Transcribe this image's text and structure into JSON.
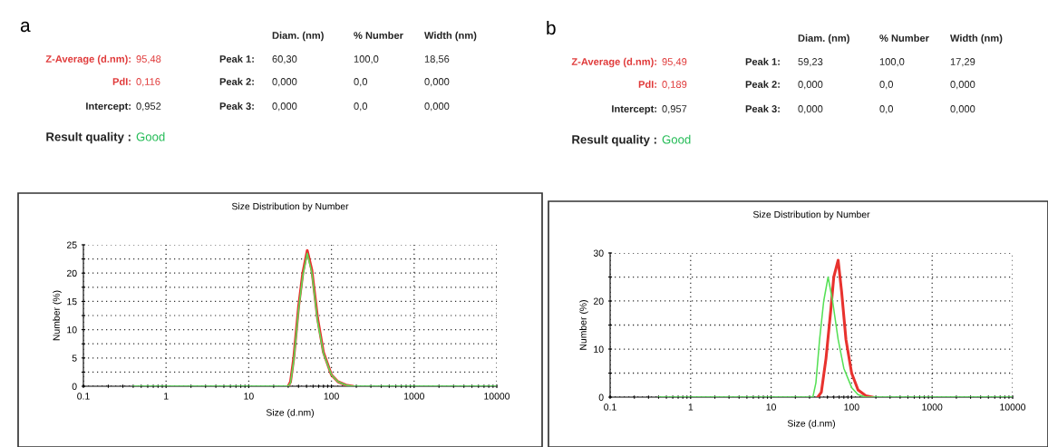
{
  "chart_data": [
    {
      "type": "other",
      "title": "a",
      "annotations": [
        "Diam. (nm)",
        "% Number",
        "Width (nm)",
        "Z-Average (d.nm):",
        "95,48",
        "Peak 1:",
        "60,30",
        "100,0",
        "18,56",
        "PdI:",
        "0,116",
        "Peak 2:",
        "0,000",
        "0,0",
        "0,000",
        "Intercept:",
        "0,952",
        "Peak 3:",
        "0,000",
        "0,0",
        "0,000",
        "Result quality :",
        "Good"
      ],
      "colors": [
        "#222222",
        "#222222",
        "#222222",
        "#e03a3a",
        "#e03a3a",
        "#222222",
        "#222222",
        "#222222",
        "#222222",
        "#e03a3a",
        "#e03a3a",
        "#222222",
        "#222222",
        "#222222",
        "#222222",
        "#222222",
        "#222222",
        "#222222",
        "#222222",
        "#222222",
        "#222222",
        "#222222",
        "#22bb55"
      ]
    },
    {
      "type": "line",
      "title": "Size Distribution by Number",
      "xlabel": "Size (d.nm)",
      "ylabel": "Number (%)",
      "log": "x",
      "xlim": [
        0.1,
        10000
      ],
      "xticks": [
        0.1,
        1,
        10,
        100,
        1000,
        10000
      ],
      "ylim": [
        0,
        25
      ],
      "yticks": [
        0,
        {
          "value": 2.5,
          "label": null
        },
        5,
        {
          "value": 7.5,
          "label": null
        },
        10,
        {
          "value": 12.5,
          "label": null
        },
        15,
        {
          "value": 17.5,
          "label": null
        },
        20,
        {
          "value": 22.5,
          "label": null
        },
        25
      ],
      "grid": true,
      "series": [
        {
          "color": "#e8322e",
          "x": [
            30,
            32,
            35,
            40,
            45,
            51,
            58,
            68,
            80,
            100,
            120,
            150,
            180
          ],
          "values": [
            0,
            0.8,
            5,
            14,
            20,
            24,
            20.5,
            12,
            6,
            2,
            0.8,
            0.2,
            0
          ]
        },
        {
          "color": "#55e055",
          "x": [
            0.4,
            30,
            32,
            35,
            40,
            45,
            51,
            58,
            68,
            80,
            100,
            120,
            150,
            180,
            10000
          ],
          "values": [
            0,
            0,
            0.6,
            4.5,
            13.5,
            19.5,
            23.5,
            20,
            11.5,
            5.8,
            2,
            0.8,
            0.2,
            0,
            0
          ]
        }
      ]
    },
    {
      "type": "other",
      "title": "b",
      "annotations": [
        "Diam. (nm)",
        "% Number",
        "Width (nm)",
        "Z-Average (d.nm):",
        "95,49",
        "Peak 1:",
        "59,23",
        "100,0",
        "17,29",
        "PdI:",
        "0,189",
        "Peak 2:",
        "0,000",
        "0,0",
        "0,000",
        "Intercept:",
        "0,957",
        "Peak 3:",
        "0,000",
        "0,0",
        "0,000",
        "Result quality :",
        "Good"
      ],
      "colors": [
        "#222222",
        "#222222",
        "#222222",
        "#e03a3a",
        "#e03a3a",
        "#222222",
        "#222222",
        "#222222",
        "#222222",
        "#e03a3a",
        "#e03a3a",
        "#222222",
        "#222222",
        "#222222",
        "#222222",
        "#222222",
        "#222222",
        "#222222",
        "#222222",
        "#222222",
        "#222222",
        "#222222",
        "#22bb55"
      ]
    },
    {
      "type": "line",
      "title": "Size Distribution by Number",
      "xlabel": "Size (d.nm)",
      "ylabel": "Number (%)",
      "log": "x",
      "xlim": [
        0.1,
        10000
      ],
      "xticks": [
        0.1,
        1,
        10,
        100,
        1000,
        10000
      ],
      "ylim": [
        0,
        30
      ],
      "yticks": [
        0,
        {
          "value": 5,
          "label": null
        },
        10,
        {
          "value": 15,
          "label": null
        },
        20,
        {
          "value": 25,
          "label": null
        },
        30
      ],
      "grid": true,
      "series": [
        {
          "color": "#e8322e",
          "x": [
            38,
            42,
            48,
            55,
            60,
            68,
            75,
            85,
            100,
            120,
            150,
            180
          ],
          "values": [
            0,
            1,
            8,
            18,
            25,
            28.5,
            22,
            12,
            5,
            1.5,
            0.3,
            0
          ]
        },
        {
          "color": "#55e055",
          "x": [
            0.4,
            33,
            36,
            40,
            45,
            51,
            58,
            68,
            80,
            100,
            120,
            150,
            10000
          ],
          "values": [
            0,
            0,
            3,
            12,
            20,
            25,
            20,
            12,
            6,
            2,
            0.5,
            0,
            0
          ]
        }
      ]
    }
  ]
}
